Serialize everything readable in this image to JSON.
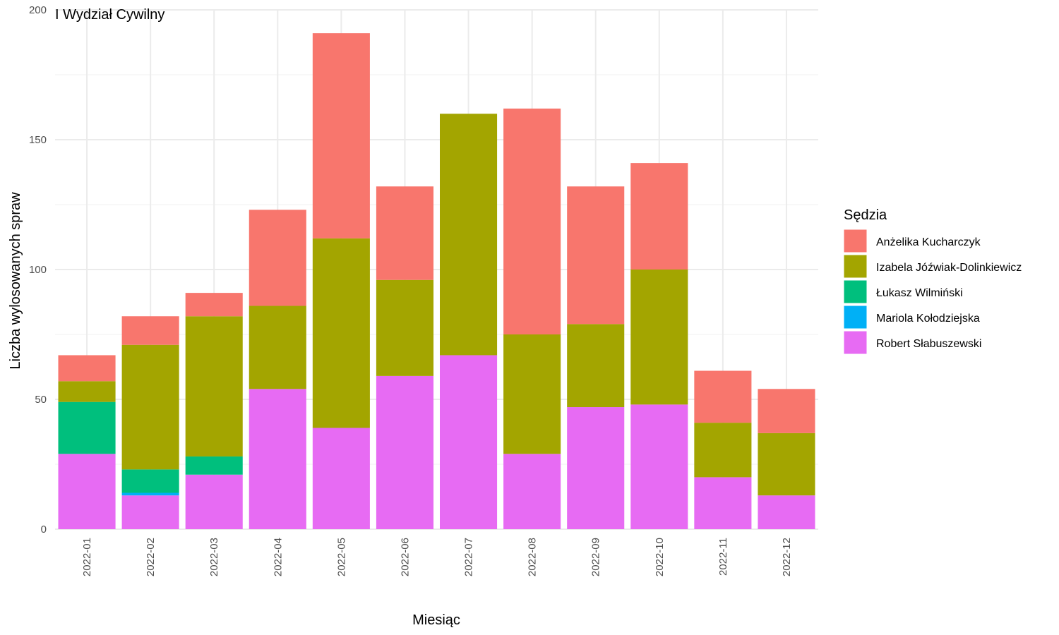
{
  "chart_data": {
    "type": "bar",
    "stacked": true,
    "title": "I Wydział Cywilny",
    "xlabel": "Miesiąc",
    "ylabel": "Liczba wylosowanych spraw",
    "ylim": [
      0,
      200
    ],
    "yticks": [
      0,
      50,
      100,
      150,
      200
    ],
    "grid": true,
    "legend_position": "right",
    "legend_title": "Sędzia",
    "categories": [
      "2022-01",
      "2022-02",
      "2022-03",
      "2022-04",
      "2022-05",
      "2022-06",
      "2022-07",
      "2022-08",
      "2022-09",
      "2022-10",
      "2022-11",
      "2022-12"
    ],
    "series": [
      {
        "name": "Robert Słabuszewski",
        "color": "#E76BF3",
        "values": [
          29,
          13,
          21,
          54,
          39,
          59,
          67,
          29,
          47,
          48,
          20,
          13
        ]
      },
      {
        "name": "Mariola Kołodziejska",
        "color": "#00B0F6",
        "values": [
          0,
          1,
          0,
          0,
          0,
          0,
          0,
          0,
          0,
          0,
          0,
          0
        ]
      },
      {
        "name": "Łukasz Wilmiński",
        "color": "#00BF7D",
        "values": [
          20,
          9,
          7,
          0,
          0,
          0,
          0,
          0,
          0,
          0,
          0,
          0
        ]
      },
      {
        "name": "Izabela Jóźwiak-Dolinkiewicz",
        "color": "#A3A500",
        "values": [
          8,
          48,
          54,
          32,
          73,
          37,
          93,
          46,
          32,
          52,
          21,
          24
        ]
      },
      {
        "name": "Anżelika Kucharczyk",
        "color": "#F8766D",
        "values": [
          10,
          11,
          9,
          37,
          79,
          36,
          0,
          87,
          53,
          41,
          20,
          17
        ]
      }
    ],
    "legend_order": [
      "Anżelika Kucharczyk",
      "Izabela Jóźwiak-Dolinkiewicz",
      "Łukasz Wilmiński",
      "Mariola Kołodziejska",
      "Robert Słabuszewski"
    ]
  }
}
